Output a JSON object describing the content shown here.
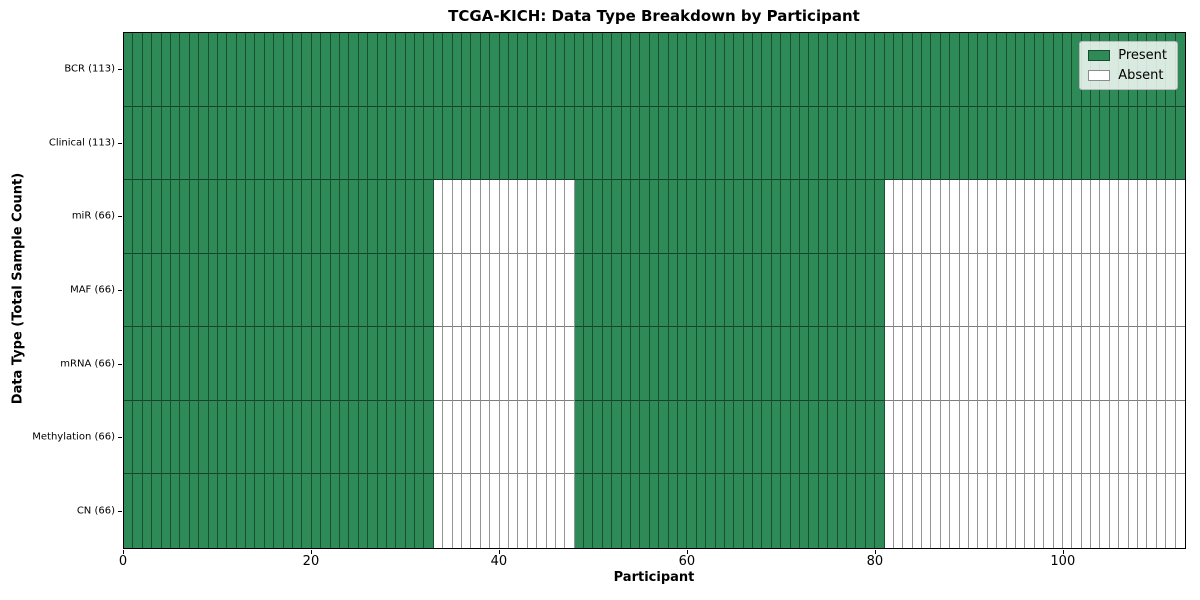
{
  "chart_data": {
    "type": "heatmap",
    "title": "TCGA-KICH: Data Type Breakdown by Participant",
    "xlabel": "Participant",
    "ylabel": "Data Type (Total Sample Count)",
    "x_ticks": [
      0,
      20,
      40,
      60,
      80,
      100
    ],
    "x_range": [
      0,
      113
    ],
    "n_participants": 113,
    "grid_on": true,
    "legend": {
      "position": "upper right",
      "entries": [
        {
          "label": "Present",
          "color": "#2e8b57"
        },
        {
          "label": "Absent",
          "color": "#ffffff"
        }
      ]
    },
    "rows": [
      {
        "label": "BCR (113)",
        "data_type": "BCR",
        "total_samples": 113,
        "present_ranges": [
          [
            0,
            113
          ]
        ]
      },
      {
        "label": "Clinical (113)",
        "data_type": "Clinical",
        "total_samples": 113,
        "present_ranges": [
          [
            0,
            113
          ]
        ]
      },
      {
        "label": "miR (66)",
        "data_type": "miR",
        "total_samples": 66,
        "present_ranges": [
          [
            0,
            33
          ],
          [
            48,
            81
          ]
        ]
      },
      {
        "label": "MAF (66)",
        "data_type": "MAF",
        "total_samples": 66,
        "present_ranges": [
          [
            0,
            33
          ],
          [
            48,
            81
          ]
        ]
      },
      {
        "label": "mRNA (66)",
        "data_type": "mRNA",
        "total_samples": 66,
        "present_ranges": [
          [
            0,
            33
          ],
          [
            48,
            81
          ]
        ]
      },
      {
        "label": "Methylation (66)",
        "data_type": "Methylation",
        "total_samples": 66,
        "present_ranges": [
          [
            0,
            33
          ],
          [
            48,
            81
          ]
        ]
      },
      {
        "label": "CN (66)",
        "data_type": "CN",
        "total_samples": 66,
        "present_ranges": [
          [
            0,
            33
          ],
          [
            48,
            81
          ]
        ]
      }
    ],
    "colors": {
      "present": "#2e8b57",
      "absent": "#ffffff",
      "grid_edge": "rgba(0,0,0,0.42)",
      "spine": "#000000"
    }
  }
}
